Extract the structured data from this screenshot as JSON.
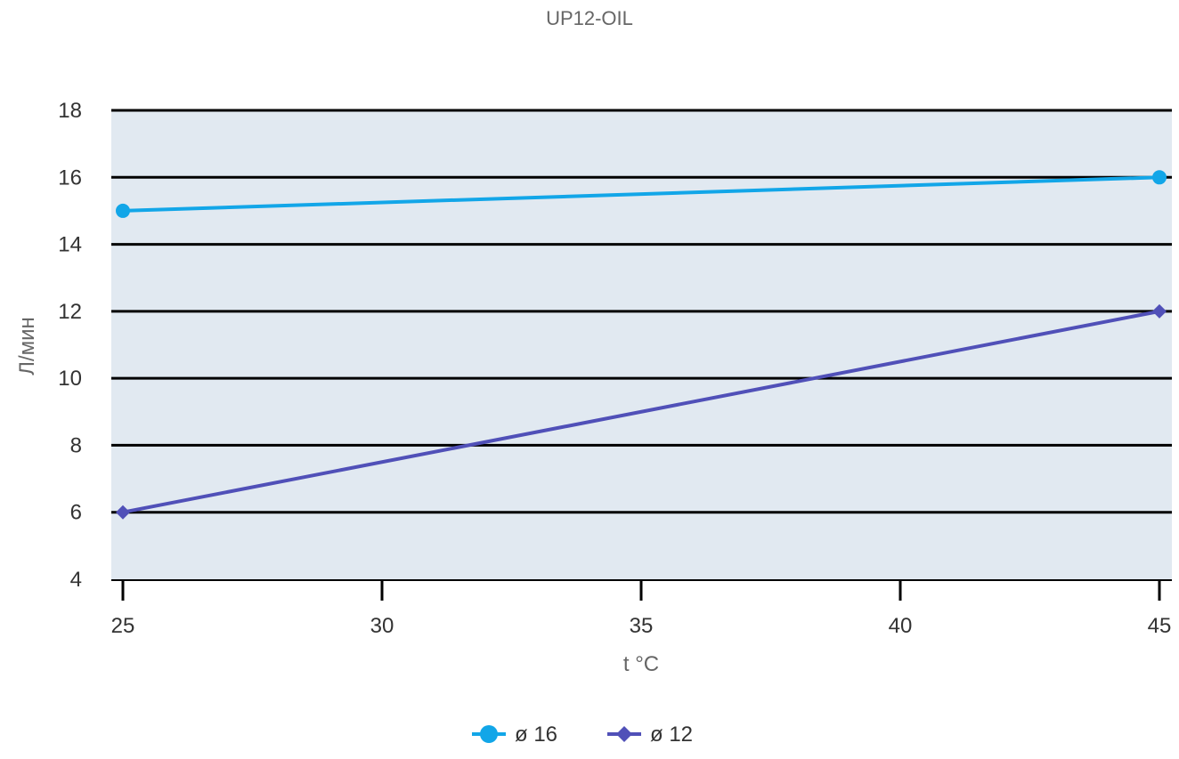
{
  "chart_data": {
    "type": "line",
    "title": "UP12-OIL",
    "xlabel": "t °C",
    "ylabel": "Л/мин",
    "xlim": [
      25,
      45
    ],
    "ylim": [
      4,
      18
    ],
    "x_ticks": [
      25,
      30,
      35,
      40,
      45
    ],
    "y_ticks": [
      4,
      6,
      8,
      10,
      12,
      14,
      16,
      18
    ],
    "grid": true,
    "legend_position": "bottom",
    "series": [
      {
        "name": "ø 16",
        "marker": "circle",
        "color": "#12a6e8",
        "x": [
          25,
          45
        ],
        "y": [
          15,
          16
        ]
      },
      {
        "name": "ø 12",
        "marker": "diamond",
        "color": "#5050b8",
        "x": [
          25,
          45
        ],
        "y": [
          6,
          12
        ]
      }
    ],
    "plot_background": "#e1e9f1",
    "grid_color": "#000000"
  }
}
